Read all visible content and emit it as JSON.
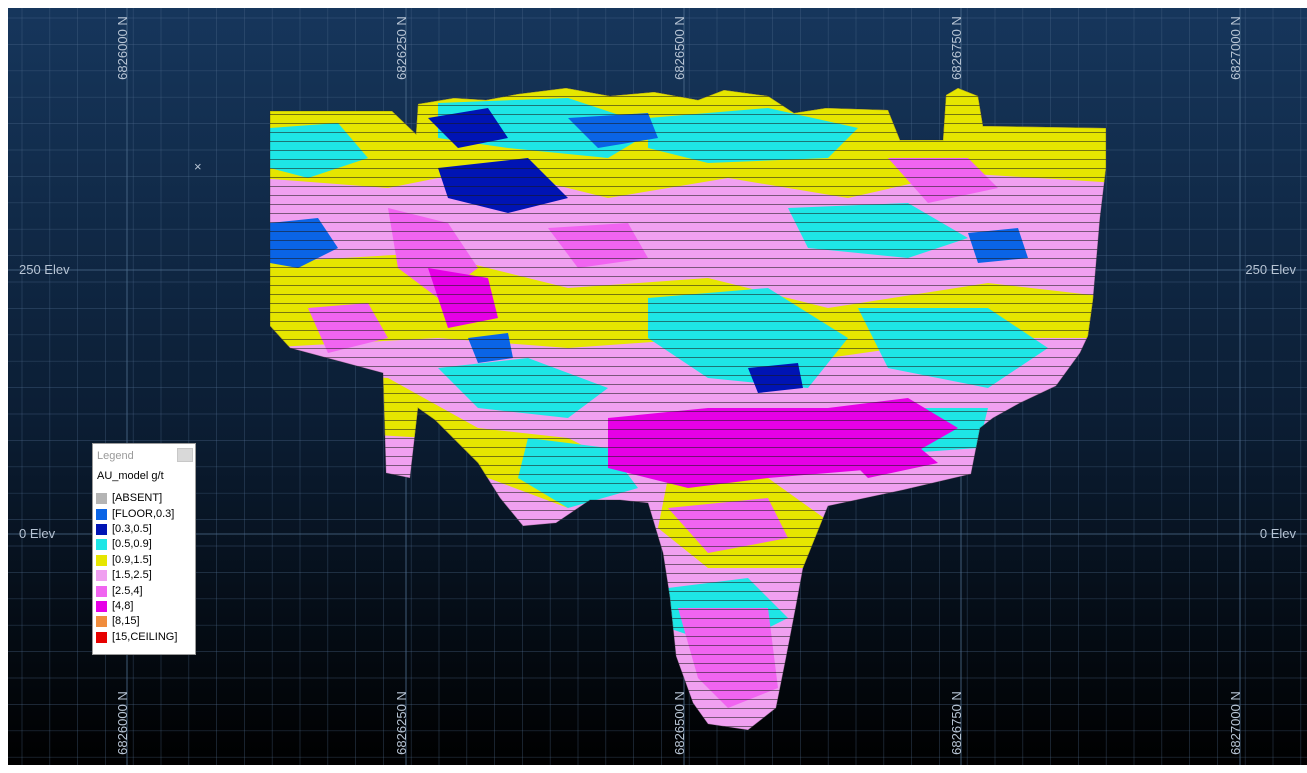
{
  "viewer": {
    "north_labels": [
      "6826000 N",
      "6826250 N",
      "6826500 N",
      "6826750 N",
      "6827000 N"
    ],
    "elev_labels": [
      "250 Elev",
      "0 Elev"
    ],
    "cursor_glyph": "×"
  },
  "legend": {
    "title": "Legend",
    "model_name": "AU_model g/t",
    "items": [
      {
        "label": "[ABSENT]",
        "color": "#b4b4b4"
      },
      {
        "label": "[FLOOR,0.3]",
        "color": "#0a64e6"
      },
      {
        "label": "[0.3,0.5]",
        "color": "#0014b4"
      },
      {
        "label": "[0.5,0.9]",
        "color": "#1ee6e6"
      },
      {
        "label": "[0.9,1.5]",
        "color": "#e6e600"
      },
      {
        "label": "[1.5,2.5]",
        "color": "#f0a0f0"
      },
      {
        "label": "[2.5,4]",
        "color": "#f064f0"
      },
      {
        "label": "[4,8]",
        "color": "#e600e6"
      },
      {
        "label": "[8,15]",
        "color": "#f08c3c"
      },
      {
        "label": "[15,CEILING]",
        "color": "#e60000"
      }
    ]
  },
  "colors": {
    "grid_line": "#4f6d8e",
    "label": "#b7c4d4",
    "background_top": "#16365c",
    "background_bottom": "#000000"
  }
}
